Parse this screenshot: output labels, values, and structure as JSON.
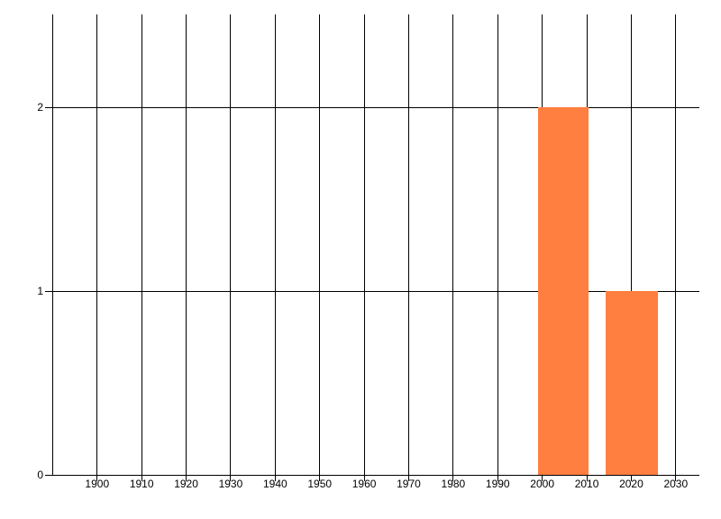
{
  "chart_data": {
    "type": "bar",
    "title": "",
    "x_tick_labels": [
      "1900",
      "1910",
      "1920",
      "1930",
      "1940",
      "1950",
      "1960",
      "1970",
      "1980",
      "1990",
      "2000",
      "2010",
      "2020",
      "2030"
    ],
    "x_ticks": [
      1900,
      1910,
      1920,
      1930,
      1940,
      1950,
      1960,
      1970,
      1980,
      1990,
      2000,
      2010,
      2020,
      2030
    ],
    "y_tick_labels": [
      "0",
      "1",
      "2"
    ],
    "y_ticks": [
      0,
      1,
      2
    ],
    "xlim": [
      1890,
      2035.3
    ],
    "ylim": [
      0,
      2.505
    ],
    "bars": [
      {
        "x_start": 1999.1,
        "x_end": 2010.4,
        "value": 2
      },
      {
        "x_start": 2014.2,
        "x_end": 2025.9,
        "value": 1
      }
    ],
    "bar_color": "#ff7f40",
    "grid": true,
    "legend_position": "none"
  },
  "colors": {
    "background": "#ffffff",
    "grid": "#000000",
    "text": "#000000",
    "bar": "#ff7f40"
  }
}
